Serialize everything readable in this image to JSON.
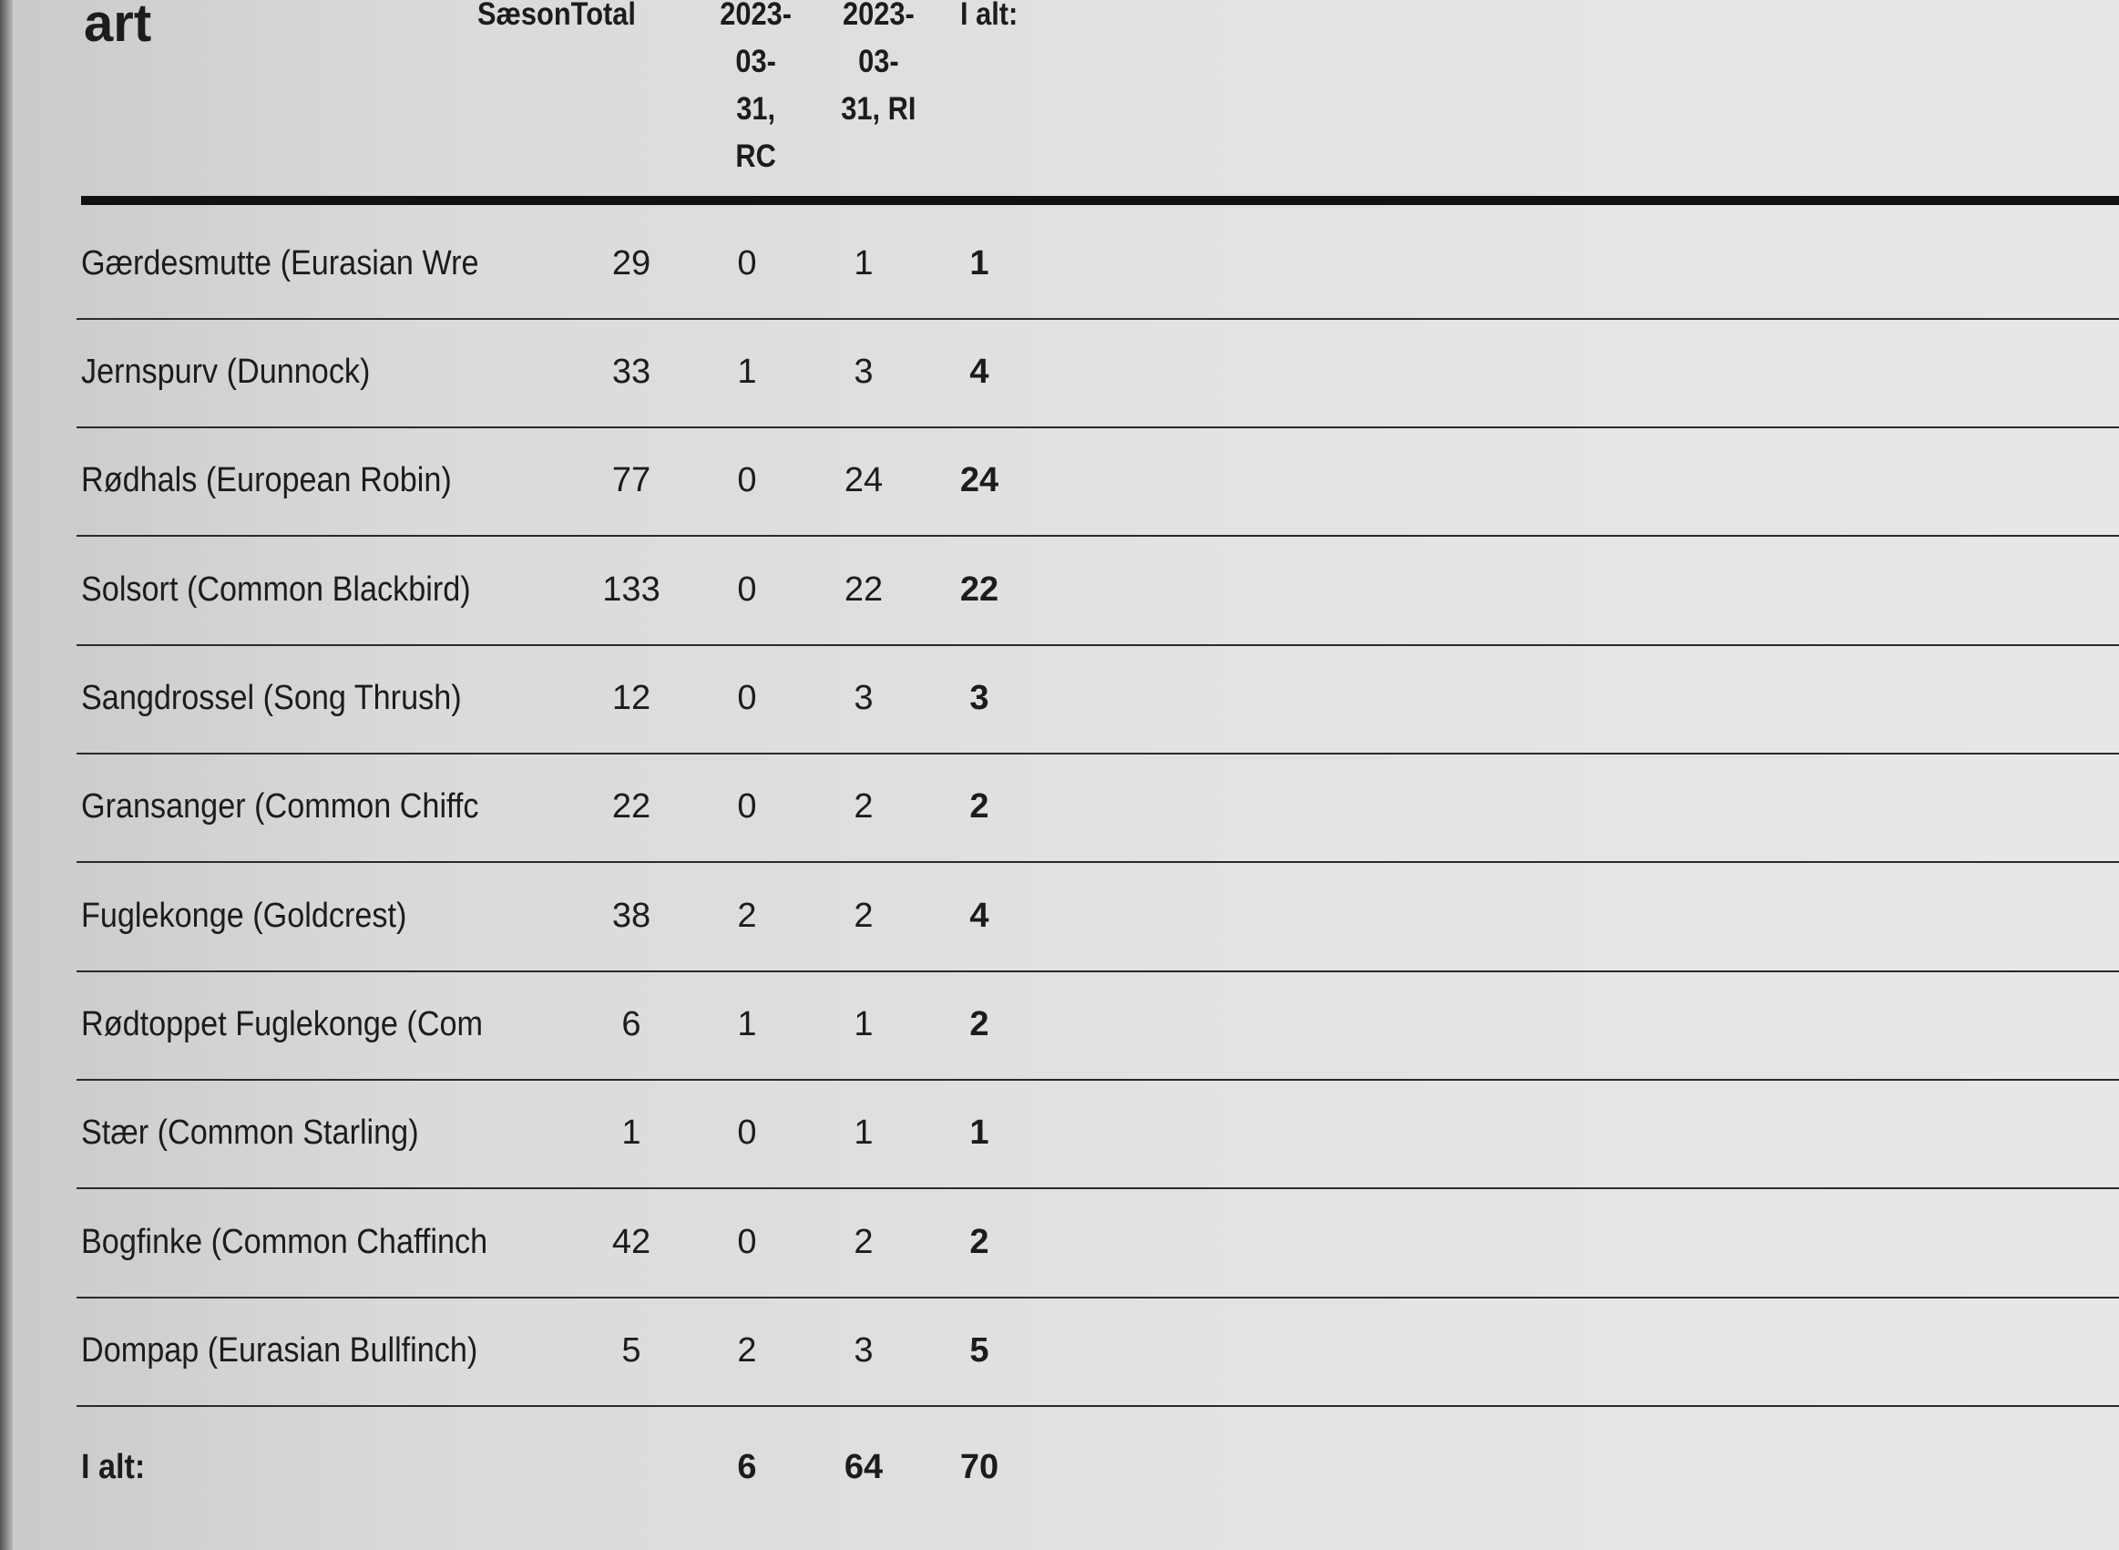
{
  "header": {
    "col_name": "art",
    "col_season": "SæsonTotal",
    "col_rc": [
      "2023-",
      "03-",
      "31,",
      "RC"
    ],
    "col_ri": [
      "2023-",
      "03-",
      "31, RI"
    ],
    "col_total": "I alt:"
  },
  "rows": [
    {
      "name": "Gærdesmutte  (Eurasian Wre",
      "season": "29",
      "rc": "0",
      "ri": "1",
      "total": "1"
    },
    {
      "name": "Jernspurv  (Dunnock)",
      "season": "33",
      "rc": "1",
      "ri": "3",
      "total": "4"
    },
    {
      "name": "Rødhals  (European Robin)",
      "season": "77",
      "rc": "0",
      "ri": "24",
      "total": "24"
    },
    {
      "name": "Solsort  (Common Blackbird)",
      "season": "133",
      "rc": "0",
      "ri": "22",
      "total": "22"
    },
    {
      "name": "Sangdrossel  (Song Thrush)",
      "season": "12",
      "rc": "0",
      "ri": "3",
      "total": "3"
    },
    {
      "name": "Gransanger  (Common Chiffc",
      "season": "22",
      "rc": "0",
      "ri": "2",
      "total": "2"
    },
    {
      "name": "Fuglekonge  (Goldcrest)",
      "season": "38",
      "rc": "2",
      "ri": "2",
      "total": "4"
    },
    {
      "name": "Rødtoppet Fuglekonge  (Com",
      "season": "6",
      "rc": "1",
      "ri": "1",
      "total": "2"
    },
    {
      "name": "Stær  (Common Starling)",
      "season": "1",
      "rc": "0",
      "ri": "1",
      "total": "1"
    },
    {
      "name": "Bogfinke  (Common Chaffinch",
      "season": "42",
      "rc": "0",
      "ri": "2",
      "total": "2"
    },
    {
      "name": "Dompap  (Eurasian Bullfinch)",
      "season": "5",
      "rc": "2",
      "ri": "3",
      "total": "5"
    }
  ],
  "footer": {
    "label": "I alt:",
    "rc": "6",
    "ri": "64",
    "total": "70"
  }
}
